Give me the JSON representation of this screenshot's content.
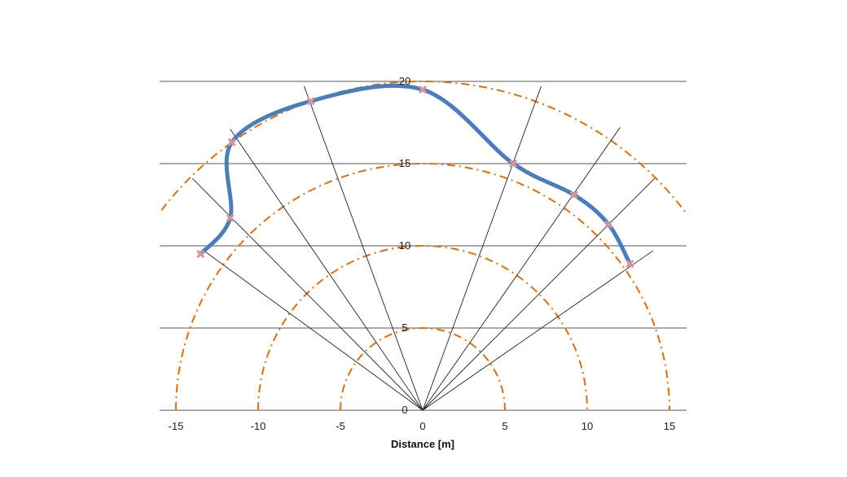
{
  "chart_data": {
    "type": "scatter",
    "title": "",
    "xlabel": "Distance [m]",
    "ylabel": "",
    "xlim": [
      -15,
      15
    ],
    "ylim": [
      0,
      20
    ],
    "x_ticks": [
      -15,
      -10,
      -5,
      0,
      5,
      10,
      15
    ],
    "y_ticks": [
      0,
      5,
      10,
      15,
      20
    ],
    "grid": "horizontal",
    "legend": "none",
    "colors": {
      "curve": "#4a7ebb",
      "markers": "#d9959b",
      "circles": "#e46c0a",
      "rays": "#222222",
      "grid": "#555555"
    },
    "range_circles": [
      5,
      10,
      15,
      20
    ],
    "rays": [
      {
        "to": [
          -13.3,
          9.7
        ]
      },
      {
        "to": [
          -14.0,
          14.1
        ]
      },
      {
        "to": [
          -11.7,
          17.1
        ]
      },
      {
        "to": [
          -7.2,
          19.7
        ]
      },
      {
        "to": [
          7.2,
          19.7
        ]
      },
      {
        "to": [
          12.0,
          17.2
        ]
      },
      {
        "to": [
          14.1,
          14.1
        ]
      },
      {
        "to": [
          14.0,
          9.7
        ]
      }
    ],
    "series": [
      {
        "type": "smooth-line",
        "points": [
          [
            -13.5,
            9.5
          ],
          [
            -11.7,
            11.7
          ],
          [
            -11.6,
            16.3
          ],
          [
            -6.8,
            18.8
          ],
          [
            0,
            19.5
          ],
          [
            5.5,
            15.0
          ],
          [
            9.2,
            13.1
          ],
          [
            11.3,
            11.3
          ],
          [
            12.6,
            8.9
          ]
        ]
      }
    ]
  }
}
